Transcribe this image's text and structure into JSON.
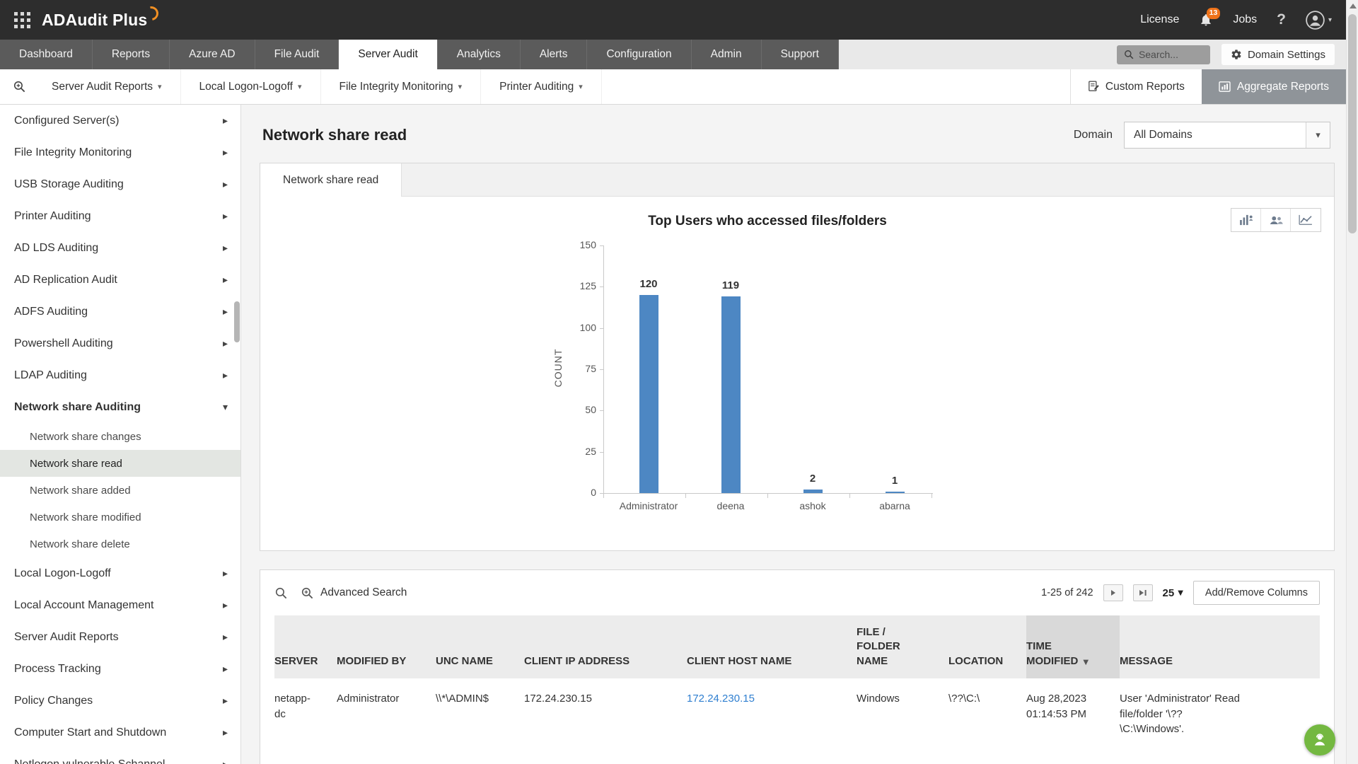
{
  "topbar": {
    "app_name": "ADAudit Plus",
    "license_label": "License",
    "notification_count": "13",
    "jobs_label": "Jobs",
    "help_label": "?"
  },
  "nav": {
    "tabs": [
      "Dashboard",
      "Reports",
      "Azure AD",
      "File Audit",
      "Server Audit",
      "Analytics",
      "Alerts",
      "Configuration",
      "Admin",
      "Support"
    ],
    "active_tab": "Server Audit",
    "search_placeholder": "Search...",
    "domain_settings_label": "Domain Settings"
  },
  "toolbar": {
    "menus": [
      "Server Audit Reports",
      "Local Logon-Logoff",
      "File Integrity Monitoring",
      "Printer Auditing"
    ],
    "custom_reports_label": "Custom Reports",
    "aggregate_reports_label": "Aggregate Reports"
  },
  "sidebar": {
    "items": [
      {
        "label": "Configured Server(s)"
      },
      {
        "label": "File Integrity Monitoring"
      },
      {
        "label": "USB Storage Auditing"
      },
      {
        "label": "Printer Auditing"
      },
      {
        "label": "AD LDS Auditing"
      },
      {
        "label": "AD Replication Audit"
      },
      {
        "label": "ADFS Auditing"
      },
      {
        "label": "Powershell Auditing"
      },
      {
        "label": "LDAP Auditing"
      },
      {
        "label": "Network share Auditing",
        "expanded": true,
        "children": [
          {
            "label": "Network share changes"
          },
          {
            "label": "Network share read",
            "selected": true
          },
          {
            "label": "Network share added"
          },
          {
            "label": "Network share modified"
          },
          {
            "label": "Network share delete"
          }
        ]
      },
      {
        "label": "Local Logon-Logoff"
      },
      {
        "label": "Local Account Management"
      },
      {
        "label": "Server Audit Reports"
      },
      {
        "label": "Process Tracking"
      },
      {
        "label": "Policy Changes"
      },
      {
        "label": "Computer Start and Shutdown"
      },
      {
        "label": "Netlogon vulnerable Schannel"
      }
    ]
  },
  "main": {
    "page_title": "Network share read",
    "domain_label": "Domain",
    "domain_value": "All Domains",
    "tab_label": "Network share read"
  },
  "chart_data": {
    "type": "bar",
    "title": "Top Users who accessed files/folders",
    "categories": [
      "Administrator",
      "deena",
      "ashok",
      "abarna"
    ],
    "values": [
      120,
      119,
      2,
      1
    ],
    "xlabel": "",
    "ylabel": "COUNT",
    "ylim": [
      0,
      150
    ],
    "yticks": [
      0,
      25,
      50,
      75,
      100,
      125,
      150
    ],
    "grid": false,
    "legend": false,
    "bar_color": "#4d87c3"
  },
  "table": {
    "advanced_search_label": "Advanced Search",
    "range_label": "1-25 of 242",
    "page_size": "25",
    "add_remove_columns_label": "Add/Remove Columns",
    "columns": [
      {
        "label": "SERVER"
      },
      {
        "label": "MODIFIED BY"
      },
      {
        "label": "UNC NAME"
      },
      {
        "label": "CLIENT IP ADDRESS"
      },
      {
        "label": "CLIENT HOST NAME"
      },
      {
        "label": "FILE / FOLDER NAME"
      },
      {
        "label": "LOCATION"
      },
      {
        "label": "TIME MODIFIED",
        "sorted": true
      },
      {
        "label": "MESSAGE"
      }
    ],
    "rows": [
      {
        "cells": [
          {
            "text": "netapp-dc"
          },
          {
            "text": "Administrator"
          },
          {
            "text": "\\\\*\\ADMIN$"
          },
          {
            "text": "172.24.230.15"
          },
          {
            "text": "172.24.230.15",
            "link": true
          },
          {
            "text": "Windows"
          },
          {
            "text": "\\??\\C:\\"
          },
          {
            "text": "Aug 28,2023 01:14:53 PM"
          },
          {
            "text": "User 'Administrator' Read file/folder '\\??\\C:\\Windows'."
          }
        ]
      }
    ]
  },
  "icons": {
    "chevron_right": "▸",
    "chevron_down": "▾",
    "caret_down": "▾",
    "sort_desc": "▼"
  }
}
